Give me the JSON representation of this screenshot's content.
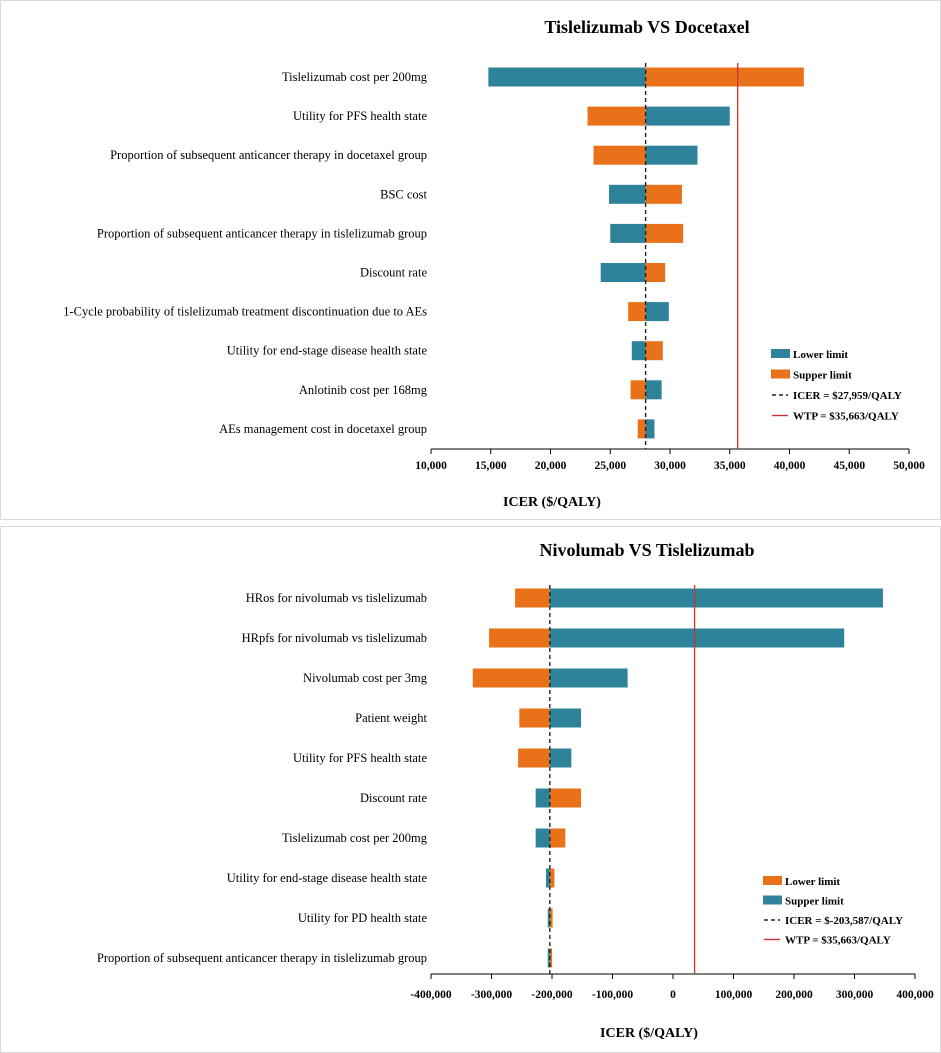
{
  "colors": {
    "teal": "#2e8299",
    "orange": "#e8711a",
    "icer_line": "#222222",
    "wtp_line": "#d32f2f"
  },
  "chart_data": [
    {
      "type": "bar",
      "orientation": "horizontal-tornado",
      "title": "Tislelizumab  VS  Docetaxel",
      "xlabel": "ICER ($/QALY)",
      "xlim": [
        10000,
        50000
      ],
      "x_ticks": [
        10000,
        15000,
        20000,
        25000,
        30000,
        35000,
        40000,
        45000,
        50000
      ],
      "x_tick_labels": [
        "10,000",
        "15,000",
        "20,000",
        "25,000",
        "30,000",
        "35,000",
        "40,000",
        "45,000",
        "50,000"
      ],
      "base_icer": 27959,
      "wtp": 35663,
      "legend": [
        {
          "label": "Lower limit",
          "color": "teal",
          "kind": "box"
        },
        {
          "label": "Supper limit",
          "color": "orange",
          "kind": "box"
        },
        {
          "label": "ICER = $27,959/QALY",
          "color": "icer_line",
          "kind": "dash"
        },
        {
          "label": "WTP = $35,663/QALY",
          "color": "wtp_line",
          "kind": "line"
        }
      ],
      "categories": [
        "Tislelizumab cost per 200mg",
        "Utility for PFS health state",
        "Proportion of subsequent anticancer therapy in docetaxel group",
        "BSC cost",
        "Proportion of subsequent anticancer therapy in tislelizumab group",
        "Discount rate",
        "1-Cycle probability of tislelizumab treatment discontinuation due to AEs",
        "Utility for end-stage disease health state",
        "Anlotinib cost per 168mg",
        "AEs management cost in docetaxel group"
      ],
      "series": [
        {
          "name": "Lower limit",
          "color": "teal",
          "values": [
            14800,
            35000,
            32300,
            24900,
            25000,
            24200,
            29900,
            26800,
            29300,
            28700
          ]
        },
        {
          "name": "Supper limit",
          "color": "orange",
          "values": [
            41200,
            23100,
            23600,
            31000,
            31100,
            29600,
            26500,
            29400,
            26700,
            27300
          ]
        }
      ]
    },
    {
      "type": "bar",
      "orientation": "horizontal-tornado",
      "title": "Nivolumab  VS  Tislelizumab",
      "xlabel": "ICER ($/QALY)",
      "xlim": [
        -400000,
        400000
      ],
      "x_ticks": [
        -400000,
        -300000,
        -200000,
        -100000,
        0,
        100000,
        200000,
        300000,
        400000
      ],
      "x_tick_labels": [
        "-400,000",
        "-300,000",
        "-200,000",
        "-100,000",
        "0",
        "100,000",
        "200,000",
        "300,000",
        "400,000"
      ],
      "base_icer": -203587,
      "wtp": 35663,
      "legend": [
        {
          "label": "Lower limit",
          "color": "orange",
          "kind": "box"
        },
        {
          "label": "Supper limit",
          "color": "teal",
          "kind": "box"
        },
        {
          "label": "ICER = $-203,587/QALY",
          "color": "icer_line",
          "kind": "dash"
        },
        {
          "label": "WTP  = $35,663/QALY",
          "color": "wtp_line",
          "kind": "line"
        }
      ],
      "categories": [
        "HRos for nivolumab vs tislelizumab",
        "HRpfs for nivolumab vs tislelizumab",
        "Nivolumab cost per 3mg",
        "Patient weight",
        "Utility for PFS health state",
        "Discount rate",
        "Tislelizumab cost per 200mg",
        "Utility for end-stage disease health state",
        "Utility for PD health state",
        "Proportion of subsequent anticancer therapy in tislelizumab group"
      ],
      "series": [
        {
          "name": "Lower limit",
          "color": "orange",
          "values": [
            -261000,
            -304000,
            -331000,
            -254000,
            -256000,
            -152000,
            -178000,
            -196000,
            -199000,
            -200000
          ]
        },
        {
          "name": "Supper limit",
          "color": "teal",
          "values": [
            347000,
            283000,
            -75000,
            -152000,
            -168000,
            -227000,
            -227000,
            -210000,
            -207000,
            -207000
          ]
        }
      ]
    }
  ]
}
